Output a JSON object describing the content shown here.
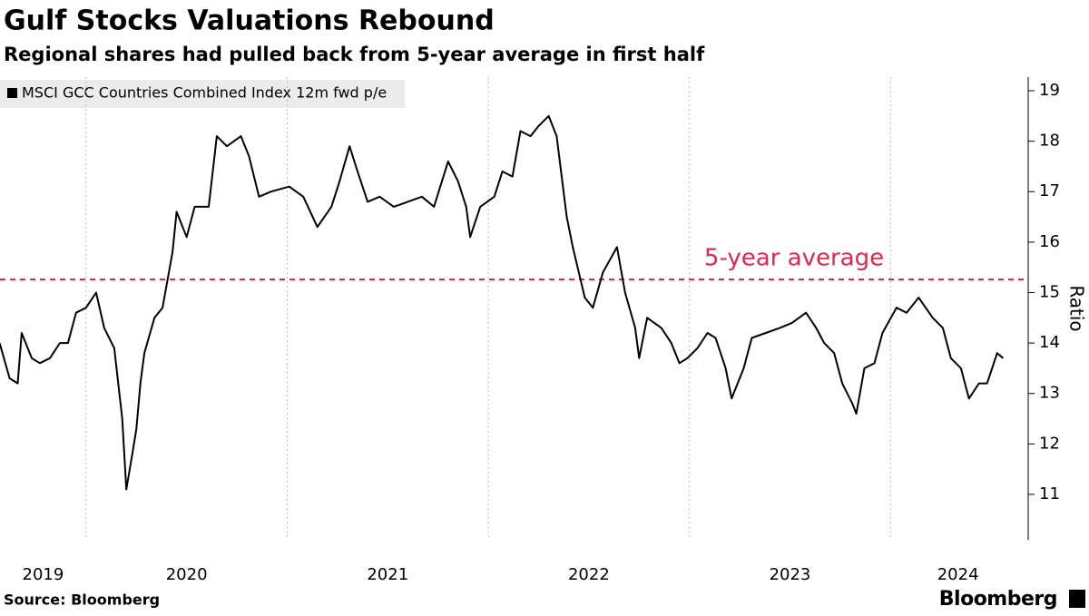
{
  "chart_data": {
    "type": "line",
    "title": "Gulf Stocks Valuations Rebound",
    "subtitle": "Regional shares had pulled back from 5-year average in first half",
    "y_label": "Ratio",
    "source": "Source: Bloomberg",
    "brand": "Bloomberg",
    "x": [
      2019.57,
      2019.62,
      2019.66,
      2019.68,
      2019.73,
      2019.77,
      2019.82,
      2019.87,
      2019.91,
      2019.95,
      2020.0,
      2020.05,
      2020.09,
      2020.14,
      2020.16,
      2020.18,
      2020.2,
      2020.23,
      2020.25,
      2020.27,
      2020.29,
      2020.34,
      2020.38,
      2020.43,
      2020.45,
      2020.5,
      2020.54,
      2020.61,
      2020.65,
      2020.7,
      2020.77,
      2020.81,
      2020.86,
      2020.92,
      2021.01,
      2021.08,
      2021.15,
      2021.22,
      2021.26,
      2021.31,
      2021.35,
      2021.4,
      2021.46,
      2021.53,
      2021.6,
      2021.67,
      2021.73,
      2021.8,
      2021.85,
      2021.89,
      2021.91,
      2021.96,
      2022.03,
      2022.07,
      2022.12,
      2022.16,
      2022.21,
      2022.25,
      2022.3,
      2022.34,
      2022.39,
      2022.42,
      2022.45,
      2022.48,
      2022.52,
      2022.57,
      2022.64,
      2022.68,
      2022.73,
      2022.75,
      2022.79,
      2022.86,
      2022.91,
      2022.95,
      2022.99,
      2023.04,
      2023.09,
      2023.13,
      2023.18,
      2023.21,
      2023.27,
      2023.31,
      2023.38,
      2023.45,
      2023.51,
      2023.58,
      2023.63,
      2023.67,
      2023.72,
      2023.76,
      2023.81,
      2023.83,
      2023.87,
      2023.92,
      2023.96,
      2024.03,
      2024.08,
      2024.14,
      2024.21,
      2024.26,
      2024.3,
      2024.35,
      2024.39,
      2024.44,
      2024.48,
      2024.53,
      2024.56
    ],
    "series": [
      {
        "name": "MSCI GCC Countries Combined Index 12m fwd p/e",
        "color": "#000000",
        "values": [
          14.0,
          13.3,
          13.2,
          14.2,
          13.7,
          13.6,
          13.7,
          14.0,
          14.0,
          14.6,
          14.7,
          15.0,
          14.3,
          13.9,
          13.2,
          12.5,
          11.1,
          11.8,
          12.3,
          13.2,
          13.8,
          14.5,
          14.7,
          15.8,
          16.6,
          16.1,
          16.7,
          16.7,
          18.1,
          17.9,
          18.1,
          17.7,
          16.9,
          17.0,
          17.1,
          16.9,
          16.3,
          16.7,
          17.2,
          17.9,
          17.4,
          16.8,
          16.9,
          16.7,
          16.8,
          16.9,
          16.7,
          17.6,
          17.2,
          16.7,
          16.1,
          16.7,
          16.9,
          17.4,
          17.3,
          18.2,
          18.1,
          18.3,
          18.5,
          18.1,
          16.5,
          15.9,
          15.4,
          14.9,
          14.7,
          15.4,
          15.9,
          15.0,
          14.3,
          13.7,
          14.5,
          14.3,
          14.0,
          13.6,
          13.7,
          13.9,
          14.2,
          14.1,
          13.5,
          12.9,
          13.5,
          14.1,
          14.2,
          14.3,
          14.4,
          14.6,
          14.3,
          14.0,
          13.8,
          13.2,
          12.8,
          12.6,
          13.5,
          13.6,
          14.2,
          14.7,
          14.6,
          14.9,
          14.5,
          14.3,
          13.7,
          13.5,
          12.9,
          13.2,
          13.2,
          13.8,
          13.7
        ]
      }
    ],
    "reference_line": {
      "value": 15.26,
      "label": "5-year average",
      "color": "#e8254d"
    },
    "xlim": [
      2019.572,
      2024.671
    ],
    "xticks": [
      2019,
      2020,
      2021,
      2022,
      2023,
      2024
    ],
    "ylim": [
      10.1,
      19.27
    ],
    "yticks": [
      11,
      12,
      13,
      14,
      15,
      16,
      17,
      18,
      19
    ],
    "x_grid": true
  }
}
